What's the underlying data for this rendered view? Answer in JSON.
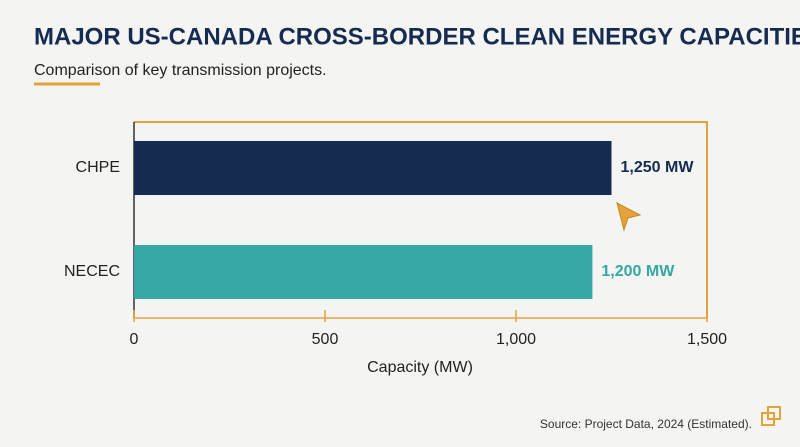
{
  "chart_data": {
    "type": "hbar",
    "title": "MAJOR US-CANADA CROSS-BORDER CLEAN ENERGY CAPACITIES",
    "subtitle": "Comparison of key transmission projects.",
    "categories": [
      "CHPE",
      "NECEC"
    ],
    "values": [
      1250,
      1200
    ],
    "value_labels": [
      "1,250 MW",
      "1,200 MW"
    ],
    "colors": [
      "#152c50",
      "#35a7a5"
    ],
    "xlabel": "Capacity (MW)",
    "xlim": [
      0,
      1500
    ],
    "xticks": [
      0,
      500,
      {
        "value": 1000,
        "label": "1,000"
      },
      {
        "value": 1500,
        "label": "1,500"
      }
    ],
    "source": "Source: Project Data, 2024 (Estimated)."
  }
}
